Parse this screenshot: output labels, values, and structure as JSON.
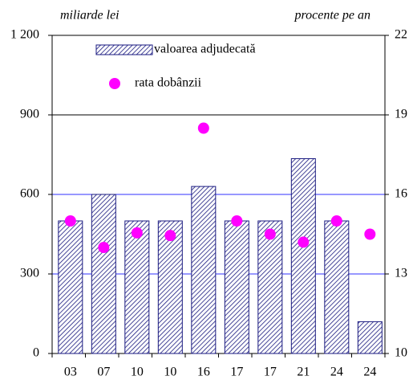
{
  "chart_data": {
    "type": "bar",
    "y_label": "miliarde lei",
    "y2_label": "procente pe an",
    "categories": [
      "03",
      "07",
      "10",
      "10",
      "16",
      "17",
      "17",
      "21",
      "24",
      "24"
    ],
    "series": [
      {
        "name": "valoarea adjudecată",
        "type": "bar",
        "color": "#1a1a80",
        "values": [
          500,
          600,
          500,
          500,
          630,
          500,
          500,
          735,
          500,
          120
        ]
      },
      {
        "name": "rata dobânzii",
        "type": "scatter",
        "axis": "y2",
        "color": "#ff00ff",
        "values": [
          15,
          14,
          14.55,
          14.45,
          18.5,
          15,
          14.5,
          14.2,
          15,
          14.5
        ]
      }
    ],
    "ylim": [
      0,
      1200
    ],
    "yticks": [
      0,
      300,
      600,
      900,
      {
        "value": 1200,
        "label": "1 200"
      }
    ],
    "y2lim": [
      10,
      22
    ],
    "y2ticks": [
      10,
      13,
      16,
      19,
      22
    ],
    "grid": true
  }
}
